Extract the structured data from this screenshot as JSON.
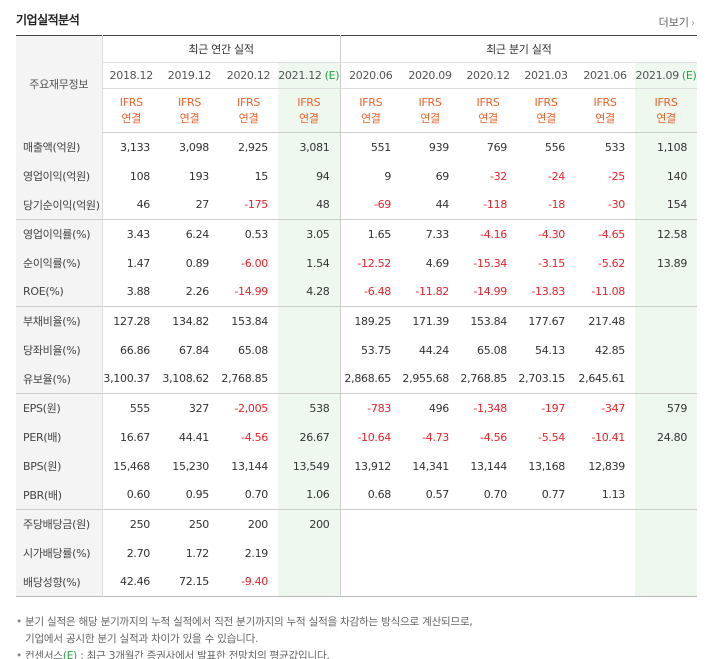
{
  "panel": {
    "title": "기업실적분석",
    "more_label": "더보기"
  },
  "table": {
    "label_header": "주요재무정보",
    "annual_header": "최근 연간 실적",
    "quarter_header": "최근 분기 실적",
    "periods": [
      {
        "label": "2018.12",
        "est": false
      },
      {
        "label": "2019.12",
        "est": false
      },
      {
        "label": "2020.12",
        "est": false
      },
      {
        "label": "2021.12",
        "est": true,
        "est_mark": "(E)"
      },
      {
        "label": "2020.06",
        "est": false
      },
      {
        "label": "2020.09",
        "est": false
      },
      {
        "label": "2020.12",
        "est": false
      },
      {
        "label": "2021.03",
        "est": false
      },
      {
        "label": "2021.06",
        "est": false
      },
      {
        "label": "2021.09",
        "est": true,
        "est_mark": "(E)"
      }
    ],
    "ifrs_line1": "IFRS",
    "ifrs_line2": "연결",
    "rows": [
      {
        "label": "매출액(억원)",
        "values": [
          "3,133",
          "3,098",
          "2,925",
          "3,081",
          "551",
          "939",
          "769",
          "556",
          "533",
          "1,108"
        ]
      },
      {
        "label": "영업이익(억원)",
        "values": [
          "108",
          "193",
          "15",
          "94",
          "9",
          "69",
          "-32",
          "-24",
          "-25",
          "140"
        ]
      },
      {
        "label": "당기순이익(억원)",
        "values": [
          "46",
          "27",
          "-175",
          "48",
          "-69",
          "44",
          "-118",
          "-18",
          "-30",
          "154"
        ]
      },
      {
        "label": "영업이익률(%)",
        "values": [
          "3.43",
          "6.24",
          "0.53",
          "3.05",
          "1.65",
          "7.33",
          "-4.16",
          "-4.30",
          "-4.65",
          "12.58"
        ],
        "group_start": true
      },
      {
        "label": "순이익률(%)",
        "values": [
          "1.47",
          "0.89",
          "-6.00",
          "1.54",
          "-12.52",
          "4.69",
          "-15.34",
          "-3.15",
          "-5.62",
          "13.89"
        ]
      },
      {
        "label": "ROE(%)",
        "values": [
          "3.88",
          "2.26",
          "-14.99",
          "4.28",
          "-6.48",
          "-11.82",
          "-14.99",
          "-13.83",
          "-11.08",
          ""
        ]
      },
      {
        "label": "부채비율(%)",
        "values": [
          "127.28",
          "134.82",
          "153.84",
          "",
          "189.25",
          "171.39",
          "153.84",
          "177.67",
          "217.48",
          ""
        ],
        "group_start": true
      },
      {
        "label": "당좌비율(%)",
        "values": [
          "66.86",
          "67.84",
          "65.08",
          "",
          "53.75",
          "44.24",
          "65.08",
          "54.13",
          "42.85",
          ""
        ]
      },
      {
        "label": "유보율(%)",
        "values": [
          "3,100.37",
          "3,108.62",
          "2,768.85",
          "",
          "2,868.65",
          "2,955.68",
          "2,768.85",
          "2,703.15",
          "2,645.61",
          ""
        ]
      },
      {
        "label": "EPS(원)",
        "values": [
          "555",
          "327",
          "-2,005",
          "538",
          "-783",
          "496",
          "-1,348",
          "-197",
          "-347",
          "579"
        ],
        "group_start": true
      },
      {
        "label": "PER(배)",
        "values": [
          "16.67",
          "44.41",
          "-4.56",
          "26.67",
          "-10.64",
          "-4.73",
          "-4.56",
          "-5.54",
          "-10.41",
          "24.80"
        ]
      },
      {
        "label": "BPS(원)",
        "values": [
          "15,468",
          "15,230",
          "13,144",
          "13,549",
          "13,912",
          "14,341",
          "13,144",
          "13,168",
          "12,839",
          ""
        ]
      },
      {
        "label": "PBR(배)",
        "values": [
          "0.60",
          "0.95",
          "0.70",
          "1.06",
          "0.68",
          "0.57",
          "0.70",
          "0.77",
          "1.13",
          ""
        ]
      },
      {
        "label": "주당배당금(원)",
        "values": [
          "250",
          "250",
          "200",
          "200",
          "",
          "",
          "",
          "",
          "",
          ""
        ],
        "group_start": true
      },
      {
        "label": "시가배당률(%)",
        "values": [
          "2.70",
          "1.72",
          "2.19",
          "",
          "",
          "",
          "",
          "",
          "",
          ""
        ]
      },
      {
        "label": "배당성향(%)",
        "values": [
          "42.46",
          "72.15",
          "-9.40",
          "",
          "",
          "",
          "",
          "",
          "",
          ""
        ]
      }
    ]
  },
  "notes": {
    "line1": "분기 실적은 해당 분기까지의 누적 실적에서 직전 분기까지의 누적 실적을 차감하는 방식으로 계산되므로,",
    "line1b": "기업에서 공시한 분기 실적과 차이가 있을 수 있습니다.",
    "line2_prefix": "컨센서스",
    "line2_e": "(E)",
    "line2_suffix": " : 최근 3개월간 증권사에서 발표한 전망치의 평균값입니다."
  },
  "colors": {
    "negative": "#e8232b",
    "ifrs": "#e8632b",
    "estimate_bg": "#eef8ee",
    "estimate_text": "#2aa140"
  }
}
